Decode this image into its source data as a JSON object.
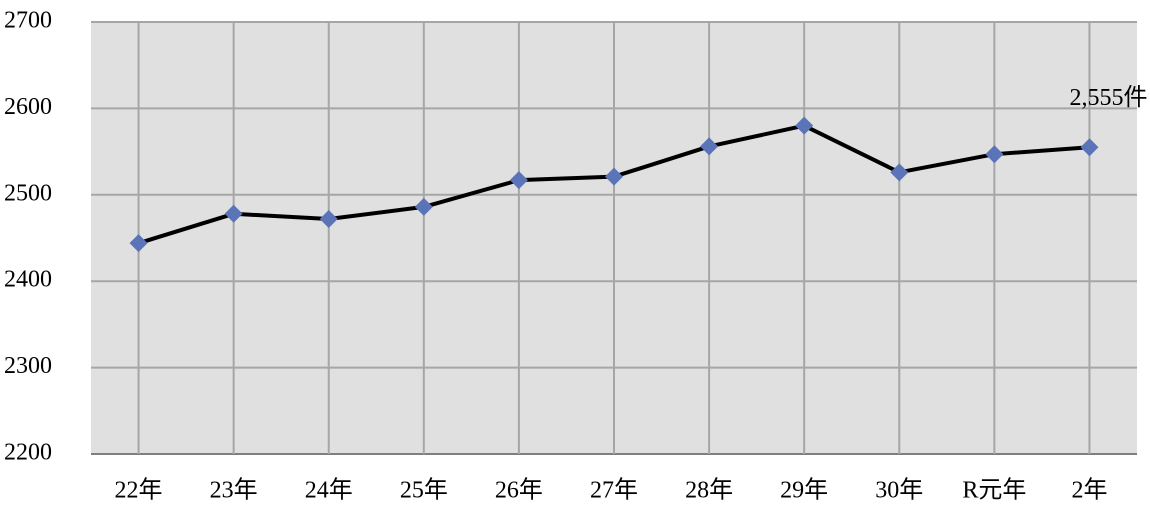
{
  "chart_data": {
    "type": "line",
    "categories": [
      "22年",
      "23年",
      "24年",
      "25年",
      "26年",
      "27年",
      "28年",
      "29年",
      "30年",
      "R元年",
      "2年"
    ],
    "values": [
      2444,
      2478,
      2472,
      2486,
      2517,
      2521,
      2556,
      2580,
      2526,
      2547,
      2555
    ],
    "value_labels": [
      null,
      null,
      null,
      null,
      null,
      null,
      null,
      null,
      null,
      null,
      "2,555件"
    ],
    "color": "#000000",
    "marker_color": "#5b74b8",
    "ylim": [
      2200,
      2700
    ],
    "yticks": [
      2200,
      2300,
      2400,
      2500,
      2600,
      2700
    ],
    "grid": true
  }
}
